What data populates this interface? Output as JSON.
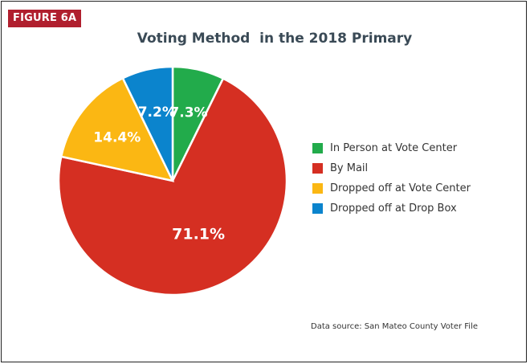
{
  "figure_label": "FIGURE 6A",
  "source": "Data source: San Mateo County Voter File",
  "chart_data": {
    "type": "pie",
    "title": "Voting Method  in the 2018 Primary",
    "legend_position": "right",
    "slices": [
      {
        "name": "In Person at Vote Center",
        "value": 7.3,
        "label": "7.3%",
        "color": "#22ab4b"
      },
      {
        "name": "By Mail",
        "value": 71.1,
        "label": "71.1%",
        "color": "#d52f22"
      },
      {
        "name": "Dropped off at Vote Center",
        "value": 14.4,
        "label": "14.4%",
        "color": "#fbb713"
      },
      {
        "name": "Dropped off at Drop Box",
        "value": 7.2,
        "label": "7.2%",
        "color": "#0b84cd"
      }
    ]
  }
}
